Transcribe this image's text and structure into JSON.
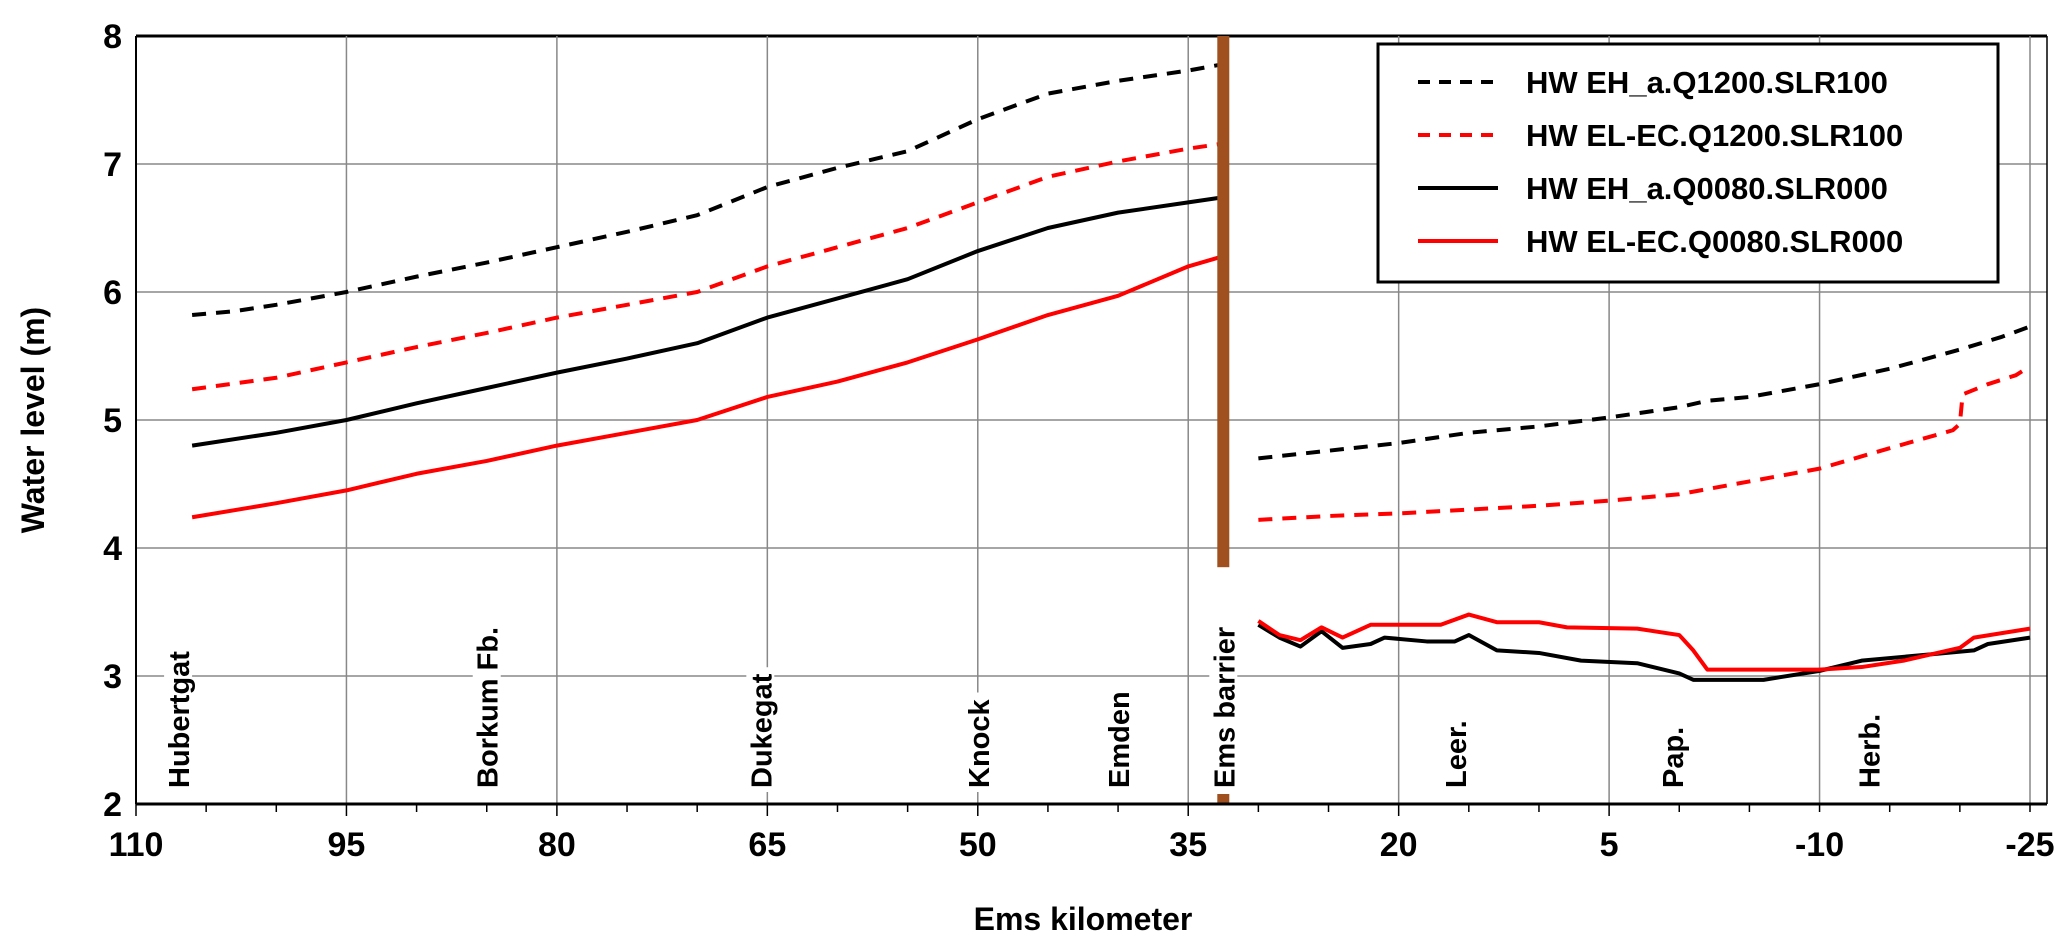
{
  "chart_data": {
    "type": "line",
    "title": "",
    "xlabel": "Ems kilometer",
    "ylabel": "Water level (m)",
    "xlim": [
      110,
      -25
    ],
    "ylim": [
      2,
      8
    ],
    "xticks": [
      110,
      95,
      80,
      65,
      50,
      35,
      20,
      5,
      -10,
      -25
    ],
    "yticks": [
      2,
      3,
      4,
      5,
      6,
      7,
      8
    ],
    "grid": true,
    "legend_position": "top-right",
    "barrier": {
      "label": "Ems barrier",
      "km": 32.5,
      "color": "#a0501e"
    },
    "locations": [
      {
        "label": "Hubertgat",
        "km": 107
      },
      {
        "label": "Borkum Fb.",
        "km": 85
      },
      {
        "label": "Dukegat",
        "km": 65.5
      },
      {
        "label": "Knock",
        "km": 50
      },
      {
        "label": "Emden",
        "km": 40
      },
      {
        "label": "Leer.",
        "km": 16
      },
      {
        "label": "Pap.",
        "km": 0.5
      },
      {
        "label": "Herb.",
        "km": -13.5
      }
    ],
    "series": [
      {
        "name": "HW EH_a.Q1200.SLR100",
        "color": "#000000",
        "dashed": true,
        "segments": [
          [
            [
              106,
              5.82
            ],
            [
              103,
              5.85
            ],
            [
              100,
              5.9
            ],
            [
              95,
              6.0
            ],
            [
              90,
              6.12
            ],
            [
              85,
              6.23
            ],
            [
              80,
              6.35
            ],
            [
              75,
              6.47
            ],
            [
              70,
              6.6
            ],
            [
              65,
              6.82
            ],
            [
              60,
              6.97
            ],
            [
              55,
              7.1
            ],
            [
              50,
              7.35
            ],
            [
              45,
              7.55
            ],
            [
              40,
              7.65
            ],
            [
              35,
              7.73
            ],
            [
              32.5,
              7.78
            ]
          ],
          [
            [
              30,
              4.7
            ],
            [
              25,
              4.76
            ],
            [
              20,
              4.82
            ],
            [
              15,
              4.9
            ],
            [
              10,
              4.95
            ],
            [
              5,
              5.02
            ],
            [
              0,
              5.1
            ],
            [
              -2,
              5.15
            ],
            [
              -5,
              5.18
            ],
            [
              -10,
              5.28
            ],
            [
              -15,
              5.4
            ],
            [
              -20,
              5.55
            ],
            [
              -23,
              5.65
            ],
            [
              -25,
              5.73
            ]
          ]
        ]
      },
      {
        "name": "HW EL-EC.Q1200.SLR100",
        "color": "#ff0000",
        "dashed": true,
        "segments": [
          [
            [
              106,
              5.24
            ],
            [
              100,
              5.33
            ],
            [
              95,
              5.45
            ],
            [
              90,
              5.57
            ],
            [
              85,
              5.68
            ],
            [
              80,
              5.8
            ],
            [
              75,
              5.9
            ],
            [
              70,
              6.0
            ],
            [
              65,
              6.2
            ],
            [
              60,
              6.35
            ],
            [
              55,
              6.5
            ],
            [
              50,
              6.7
            ],
            [
              45,
              6.9
            ],
            [
              40,
              7.02
            ],
            [
              35,
              7.12
            ],
            [
              32.5,
              7.16
            ]
          ],
          [
            [
              30,
              4.22
            ],
            [
              25,
              4.25
            ],
            [
              20,
              4.27
            ],
            [
              15,
              4.3
            ],
            [
              10,
              4.33
            ],
            [
              5,
              4.37
            ],
            [
              0,
              4.42
            ],
            [
              -5,
              4.52
            ],
            [
              -10,
              4.62
            ],
            [
              -15,
              4.78
            ],
            [
              -19.5,
              4.92
            ],
            [
              -20,
              4.97
            ],
            [
              -20.2,
              5.2
            ],
            [
              -22,
              5.28
            ],
            [
              -24,
              5.35
            ],
            [
              -25,
              5.42
            ]
          ]
        ]
      },
      {
        "name": "HW EH_a.Q0080.SLR000",
        "color": "#000000",
        "dashed": false,
        "segments": [
          [
            [
              106,
              4.8
            ],
            [
              100,
              4.9
            ],
            [
              95,
              5.0
            ],
            [
              90,
              5.13
            ],
            [
              85,
              5.25
            ],
            [
              80,
              5.37
            ],
            [
              75,
              5.48
            ],
            [
              70,
              5.6
            ],
            [
              65,
              5.8
            ],
            [
              60,
              5.95
            ],
            [
              55,
              6.1
            ],
            [
              50,
              6.32
            ],
            [
              45,
              6.5
            ],
            [
              40,
              6.62
            ],
            [
              35,
              6.7
            ],
            [
              32.5,
              6.74
            ]
          ],
          [
            [
              30,
              3.4
            ],
            [
              28.5,
              3.3
            ],
            [
              27,
              3.23
            ],
            [
              25.5,
              3.35
            ],
            [
              24,
              3.22
            ],
            [
              22,
              3.25
            ],
            [
              21,
              3.3
            ],
            [
              18,
              3.27
            ],
            [
              16,
              3.27
            ],
            [
              15,
              3.32
            ],
            [
              13,
              3.2
            ],
            [
              10,
              3.18
            ],
            [
              7,
              3.12
            ],
            [
              3,
              3.1
            ],
            [
              0,
              3.02
            ],
            [
              -1,
              2.97
            ],
            [
              -6,
              2.97
            ],
            [
              -10,
              3.04
            ],
            [
              -13,
              3.12
            ],
            [
              -18,
              3.17
            ],
            [
              -21,
              3.2
            ],
            [
              -22,
              3.25
            ],
            [
              -25,
              3.3
            ]
          ]
        ]
      },
      {
        "name": "HW EL-EC.Q0080.SLR000",
        "color": "#ff0000",
        "dashed": false,
        "segments": [
          [
            [
              106,
              4.24
            ],
            [
              100,
              4.35
            ],
            [
              95,
              4.45
            ],
            [
              90,
              4.58
            ],
            [
              85,
              4.68
            ],
            [
              80,
              4.8
            ],
            [
              75,
              4.9
            ],
            [
              70,
              5.0
            ],
            [
              65,
              5.18
            ],
            [
              60,
              5.3
            ],
            [
              55,
              5.45
            ],
            [
              50,
              5.63
            ],
            [
              45,
              5.82
            ],
            [
              40,
              5.97
            ],
            [
              35,
              6.2
            ],
            [
              32.5,
              6.28
            ]
          ],
          [
            [
              30,
              3.43
            ],
            [
              28.5,
              3.32
            ],
            [
              27,
              3.28
            ],
            [
              25.5,
              3.38
            ],
            [
              24,
              3.3
            ],
            [
              22,
              3.4
            ],
            [
              17,
              3.4
            ],
            [
              15,
              3.48
            ],
            [
              13,
              3.42
            ],
            [
              10,
              3.42
            ],
            [
              8,
              3.38
            ],
            [
              3,
              3.37
            ],
            [
              0,
              3.32
            ],
            [
              -1,
              3.2
            ],
            [
              -2,
              3.05
            ],
            [
              -5,
              3.05
            ],
            [
              -10,
              3.05
            ],
            [
              -13,
              3.07
            ],
            [
              -16,
              3.12
            ],
            [
              -20,
              3.22
            ],
            [
              -21,
              3.3
            ],
            [
              -25,
              3.37
            ]
          ]
        ]
      }
    ]
  }
}
